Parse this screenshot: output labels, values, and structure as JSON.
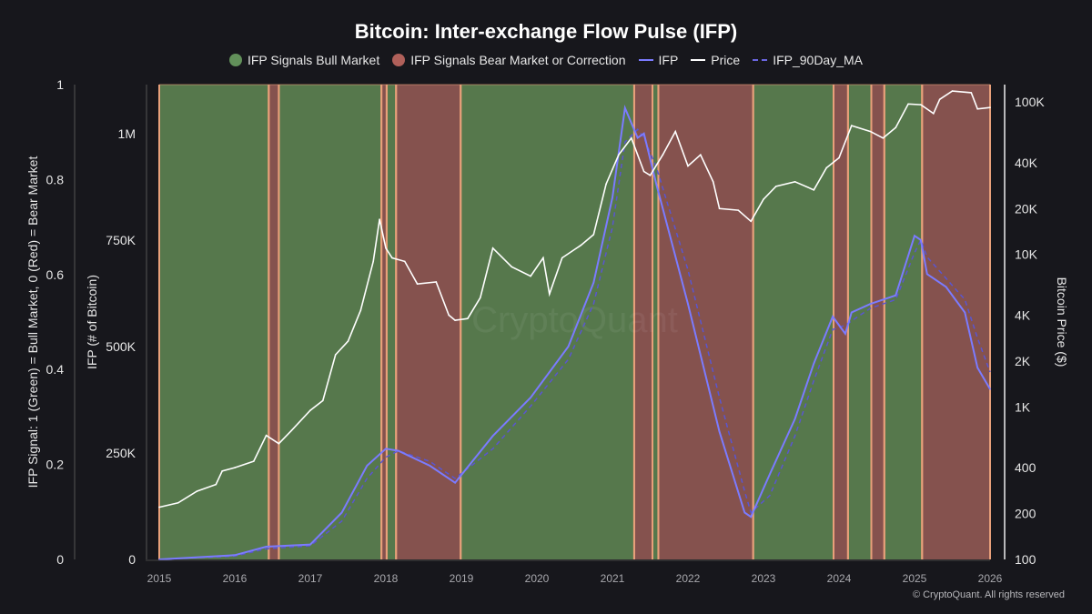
{
  "chart_data": {
    "type": "line",
    "title": "Bitcoin: Inter-exchange Flow Pulse (IFP)",
    "legend": [
      {
        "label": "IFP Signals Bull Market",
        "color": "#62905a",
        "shape": "dot"
      },
      {
        "label": "IFP Signals Bear Market or Correction",
        "color": "#b0605a",
        "shape": "dot"
      },
      {
        "label": "IFP",
        "color": "#7b7bff",
        "shape": "line"
      },
      {
        "label": "Price",
        "color": "#ffffff",
        "shape": "line"
      },
      {
        "label": "IFP_90Day_MA",
        "color": "#5656c8",
        "shape": "dashed-line"
      }
    ],
    "legend_placement": "top-center",
    "colors": {
      "bull": "#56784c",
      "bear": "#85524e",
      "boundary": "#e8a07a",
      "ifp": "#7b7bff",
      "ma": "#5a55d0",
      "price": "#ffffff"
    },
    "x_axis": {
      "type": "date",
      "range": [
        "2015-01-01",
        "2026-01-01"
      ],
      "ticks": [
        "2015",
        "2016",
        "2017",
        "2018",
        "2019",
        "2020",
        "2021",
        "2022",
        "2023",
        "2024",
        "2025",
        "2026"
      ]
    },
    "y_axis_signal": {
      "label": "IFP Signal: 1 (Green) = Bull Market, 0 (Red) = Bear Market",
      "range": [
        0,
        1
      ],
      "ticks": [
        0,
        0.2,
        0.4,
        0.6,
        0.8,
        1
      ],
      "tick_labels": [
        "0",
        "0.2",
        "0.4",
        "0.6",
        "0.8",
        "1"
      ]
    },
    "y_axis_ifp": {
      "label": "IFP (# of Bitcoin)",
      "range": [
        0,
        1115000
      ],
      "ticks": [
        0,
        250000,
        500000,
        750000,
        1000000
      ],
      "tick_labels": [
        "0",
        "250K",
        "500K",
        "750K",
        "1M"
      ]
    },
    "y_axis_price": {
      "label": "Bitcoin Price ($)",
      "scale": "log",
      "range": [
        100,
        130000
      ],
      "ticks": [
        100,
        200,
        400,
        1000,
        2000,
        4000,
        10000,
        20000,
        40000,
        100000
      ],
      "tick_labels": [
        "100",
        "200",
        "400",
        "1K",
        "2K",
        "4K",
        "10K",
        "20K",
        "40K",
        "100K"
      ]
    },
    "signal_bands": [
      {
        "start": "2015-01-01",
        "end": "2016-06-13",
        "signal": 1
      },
      {
        "start": "2016-06-13",
        "end": "2016-08-01",
        "signal": 0
      },
      {
        "start": "2016-08-01",
        "end": "2017-12-10",
        "signal": 1
      },
      {
        "start": "2017-12-10",
        "end": "2018-01-05",
        "signal": 0
      },
      {
        "start": "2018-01-05",
        "end": "2018-02-20",
        "signal": 1
      },
      {
        "start": "2018-02-20",
        "end": "2018-12-28",
        "signal": 0
      },
      {
        "start": "2018-12-28",
        "end": "2021-04-15",
        "signal": 1
      },
      {
        "start": "2021-04-15",
        "end": "2021-07-12",
        "signal": 0
      },
      {
        "start": "2021-07-12",
        "end": "2021-08-10",
        "signal": 1
      },
      {
        "start": "2021-08-10",
        "end": "2022-11-12",
        "signal": 0
      },
      {
        "start": "2022-11-12",
        "end": "2023-12-05",
        "signal": 1
      },
      {
        "start": "2023-12-05",
        "end": "2024-02-14",
        "signal": 0
      },
      {
        "start": "2024-02-14",
        "end": "2024-06-05",
        "signal": 1
      },
      {
        "start": "2024-06-05",
        "end": "2024-08-07",
        "signal": 0
      },
      {
        "start": "2024-08-07",
        "end": "2025-02-07",
        "signal": 1
      },
      {
        "start": "2025-02-07",
        "end": "2026-01-01",
        "signal": 0
      }
    ],
    "price": {
      "dates": [
        "2015-01",
        "2015-04",
        "2015-07",
        "2015-10",
        "2015-11",
        "2016-01",
        "2016-04",
        "2016-06",
        "2016-08",
        "2016-10",
        "2017-01",
        "2017-03",
        "2017-05",
        "2017-07",
        "2017-09",
        "2017-11",
        "2017-12",
        "2018-01",
        "2018-02",
        "2018-04",
        "2018-06",
        "2018-09",
        "2018-11",
        "2018-12",
        "2019-02",
        "2019-04",
        "2019-06",
        "2019-09",
        "2019-12",
        "2020-02",
        "2020-03",
        "2020-05",
        "2020-08",
        "2020-10",
        "2020-12",
        "2021-02",
        "2021-04",
        "2021-06",
        "2021-07",
        "2021-09",
        "2021-11",
        "2022-01",
        "2022-03",
        "2022-05",
        "2022-06",
        "2022-09",
        "2022-11",
        "2023-01",
        "2023-03",
        "2023-06",
        "2023-09",
        "2023-11",
        "2024-01",
        "2024-03",
        "2024-06",
        "2024-08",
        "2024-10",
        "2024-12",
        "2025-02",
        "2025-04",
        "2025-05",
        "2025-07",
        "2025-10",
        "2025-11",
        "2026-01"
      ],
      "values": [
        220,
        235,
        280,
        310,
        380,
        400,
        440,
        650,
        575,
        700,
        950,
        1100,
        2200,
        2700,
        4300,
        9000,
        17000,
        11000,
        9500,
        9000,
        6400,
        6600,
        4000,
        3700,
        3800,
        5200,
        11000,
        8300,
        7200,
        9500,
        5500,
        9500,
        11500,
        13500,
        29000,
        45000,
        58000,
        35000,
        33000,
        45000,
        64000,
        38000,
        45000,
        30000,
        20000,
        19500,
        16500,
        23000,
        28000,
        30000,
        26500,
        37000,
        43000,
        70000,
        64000,
        58000,
        68000,
        97000,
        96000,
        84000,
        104000,
        118000,
        115000,
        90000,
        92000
      ]
    },
    "ifp": {
      "dates": [
        "2015-01",
        "2016-01",
        "2016-06",
        "2017-01",
        "2017-06",
        "2017-10",
        "2018-01",
        "2018-03",
        "2018-08",
        "2018-12",
        "2019-06",
        "2019-12",
        "2020-06",
        "2020-10",
        "2021-01",
        "2021-03",
        "2021-05",
        "2021-06",
        "2021-08",
        "2022-01",
        "2022-06",
        "2022-10",
        "2022-11",
        "2023-02",
        "2023-06",
        "2023-09",
        "2023-12",
        "2024-02",
        "2024-03",
        "2024-06",
        "2024-10",
        "2025-01",
        "2025-02",
        "2025-03",
        "2025-06",
        "2025-09",
        "2025-11",
        "2026-01"
      ],
      "values": [
        0,
        10000,
        30000,
        35000,
        110000,
        220000,
        260000,
        255000,
        220000,
        180000,
        290000,
        380000,
        500000,
        650000,
        850000,
        1060000,
        990000,
        1000000,
        880000,
        600000,
        300000,
        110000,
        100000,
        200000,
        330000,
        460000,
        570000,
        530000,
        580000,
        600000,
        620000,
        760000,
        750000,
        670000,
        640000,
        580000,
        450000,
        400000
      ],
      "ma_90day": [
        0,
        8000,
        25000,
        32000,
        90000,
        190000,
        240000,
        255000,
        230000,
        190000,
        260000,
        360000,
        470000,
        600000,
        780000,
        980000,
        1010000,
        990000,
        920000,
        680000,
        380000,
        160000,
        110000,
        150000,
        290000,
        420000,
        540000,
        550000,
        560000,
        590000,
        610000,
        720000,
        750000,
        710000,
        660000,
        610000,
        520000,
        440000
      ]
    },
    "watermark": "CryptoQuant"
  },
  "footer": {
    "copyright": "© CryptoQuant. All rights reserved"
  }
}
